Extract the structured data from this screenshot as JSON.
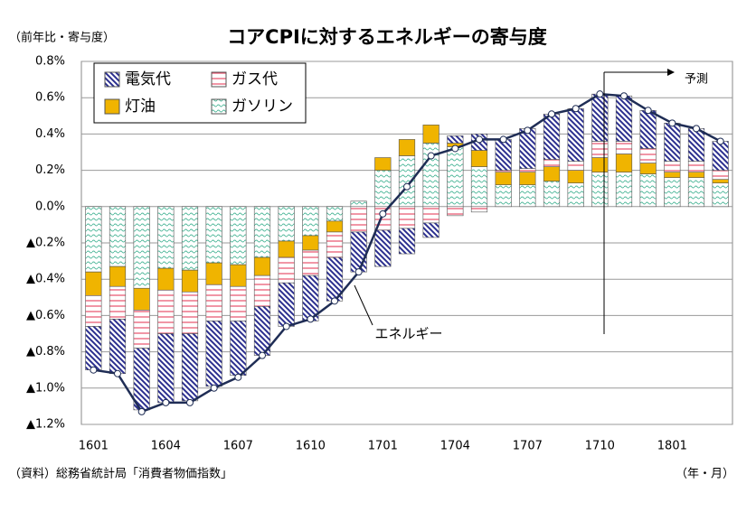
{
  "chart_data": {
    "type": "bar",
    "title": "コアCPIに対するエネルギーの寄与度",
    "y_axis_label": "（前年比・寄与度）",
    "x_axis_label": "（年・月）",
    "source": "（資料）総務省統計局「消費者物価指数」",
    "annotation": "予測",
    "categories": [
      "1601",
      null,
      null,
      "1604",
      null,
      null,
      "1607",
      null,
      null,
      "1610",
      null,
      null,
      "1701",
      null,
      null,
      "1704",
      null,
      null,
      "1707",
      null,
      null,
      "1710",
      null,
      null,
      "1801",
      null,
      null
    ],
    "series": [
      {
        "name": "ガソリン",
        "color": "#4fb89a",
        "values": [
          -0.36,
          -0.33,
          -0.45,
          -0.34,
          -0.35,
          -0.31,
          -0.32,
          -0.28,
          -0.19,
          -0.16,
          -0.08,
          0.03,
          0.2,
          0.28,
          0.35,
          0.33,
          0.22,
          0.12,
          0.12,
          0.14,
          0.13,
          0.19,
          0.19,
          0.18,
          0.16,
          0.16,
          0.13
        ]
      },
      {
        "name": "灯油",
        "color": "#f0b400",
        "values": [
          -0.13,
          -0.11,
          -0.12,
          -0.12,
          -0.12,
          -0.12,
          -0.12,
          -0.1,
          -0.09,
          -0.08,
          -0.06,
          0,
          0.07,
          0.09,
          0.1,
          0.02,
          0.09,
          0.07,
          0.07,
          0.08,
          0.07,
          0.08,
          0.1,
          0.06,
          0.03,
          0.03,
          0.02
        ]
      },
      {
        "name": "ガス代",
        "color": "#e8506a",
        "values": [
          -0.17,
          -0.18,
          -0.21,
          -0.24,
          -0.23,
          -0.2,
          -0.19,
          -0.17,
          -0.14,
          -0.14,
          -0.14,
          -0.14,
          -0.13,
          -0.12,
          -0.09,
          -0.05,
          -0.03,
          0.01,
          0.02,
          0.04,
          0.05,
          0.09,
          0.07,
          0.08,
          0.06,
          0.06,
          0.05
        ]
      },
      {
        "name": "電気代",
        "color": "#2b2f8f",
        "values": [
          -0.24,
          -0.3,
          -0.34,
          -0.38,
          -0.37,
          -0.36,
          -0.3,
          -0.27,
          -0.24,
          -0.25,
          -0.24,
          -0.22,
          -0.2,
          -0.14,
          -0.08,
          0.04,
          0.09,
          0.17,
          0.22,
          0.25,
          0.29,
          0.26,
          0.25,
          0.21,
          0.21,
          0.18,
          0.16
        ]
      }
    ],
    "line_series": {
      "name": "エネルギー",
      "color": "#1f2d55",
      "values": [
        -0.9,
        -0.92,
        -1.13,
        -1.08,
        -1.08,
        -1.0,
        -0.94,
        -0.82,
        -0.66,
        -0.62,
        -0.52,
        -0.36,
        -0.04,
        0.11,
        0.28,
        0.32,
        0.37,
        0.37,
        0.42,
        0.51,
        0.54,
        0.62,
        0.61,
        0.53,
        0.46,
        0.43,
        0.36
      ]
    },
    "ylim": [
      -1.2,
      0.8
    ],
    "yticks": [
      {
        "value": 0.8,
        "label": "0.8%"
      },
      {
        "value": 0.6,
        "label": "0.6%"
      },
      {
        "value": 0.4,
        "label": "0.4%"
      },
      {
        "value": 0.2,
        "label": "0.2%"
      },
      {
        "value": 0,
        "label": "0.0%"
      },
      {
        "value": -0.2,
        "label": "▲0.2%"
      },
      {
        "value": -0.4,
        "label": "▲0.4%"
      },
      {
        "value": -0.6,
        "label": "▲0.6%"
      },
      {
        "value": -0.8,
        "label": "▲0.8%"
      },
      {
        "value": -1.0,
        "label": "▲1.0%"
      },
      {
        "value": -1.2,
        "label": "▲1.2%"
      }
    ],
    "grid": true,
    "legend_order": [
      3,
      2,
      1,
      0
    ]
  }
}
